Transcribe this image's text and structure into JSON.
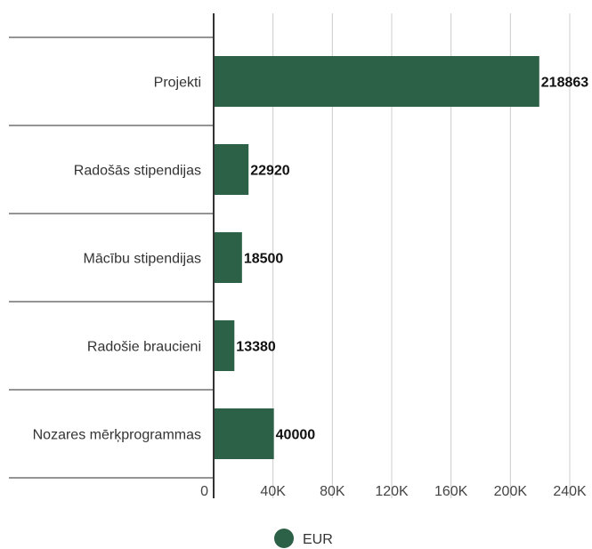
{
  "chart_data": {
    "type": "bar",
    "orientation": "horizontal",
    "categories": [
      "Projekti",
      "Radošās stipendijas",
      "Mācību stipendijas",
      "Radošie braucieni",
      "Nozares mērķprogrammas"
    ],
    "series": [
      {
        "name": "EUR",
        "values": [
          218863,
          22920,
          18500,
          13380,
          40000
        ]
      }
    ],
    "data_labels": [
      "218863",
      "22920",
      "18500",
      "13380",
      "40000"
    ],
    "x_ticks": [
      0,
      40000,
      80000,
      120000,
      160000,
      200000,
      240000
    ],
    "x_tick_labels": [
      "0",
      "40K",
      "80K",
      "120K",
      "160K",
      "200K",
      "240K"
    ],
    "xlim": [
      0,
      240000
    ],
    "title": "",
    "xlabel": "",
    "ylabel": "",
    "grid": true,
    "legend_position": "bottom",
    "bar_color": "#2d6147"
  }
}
